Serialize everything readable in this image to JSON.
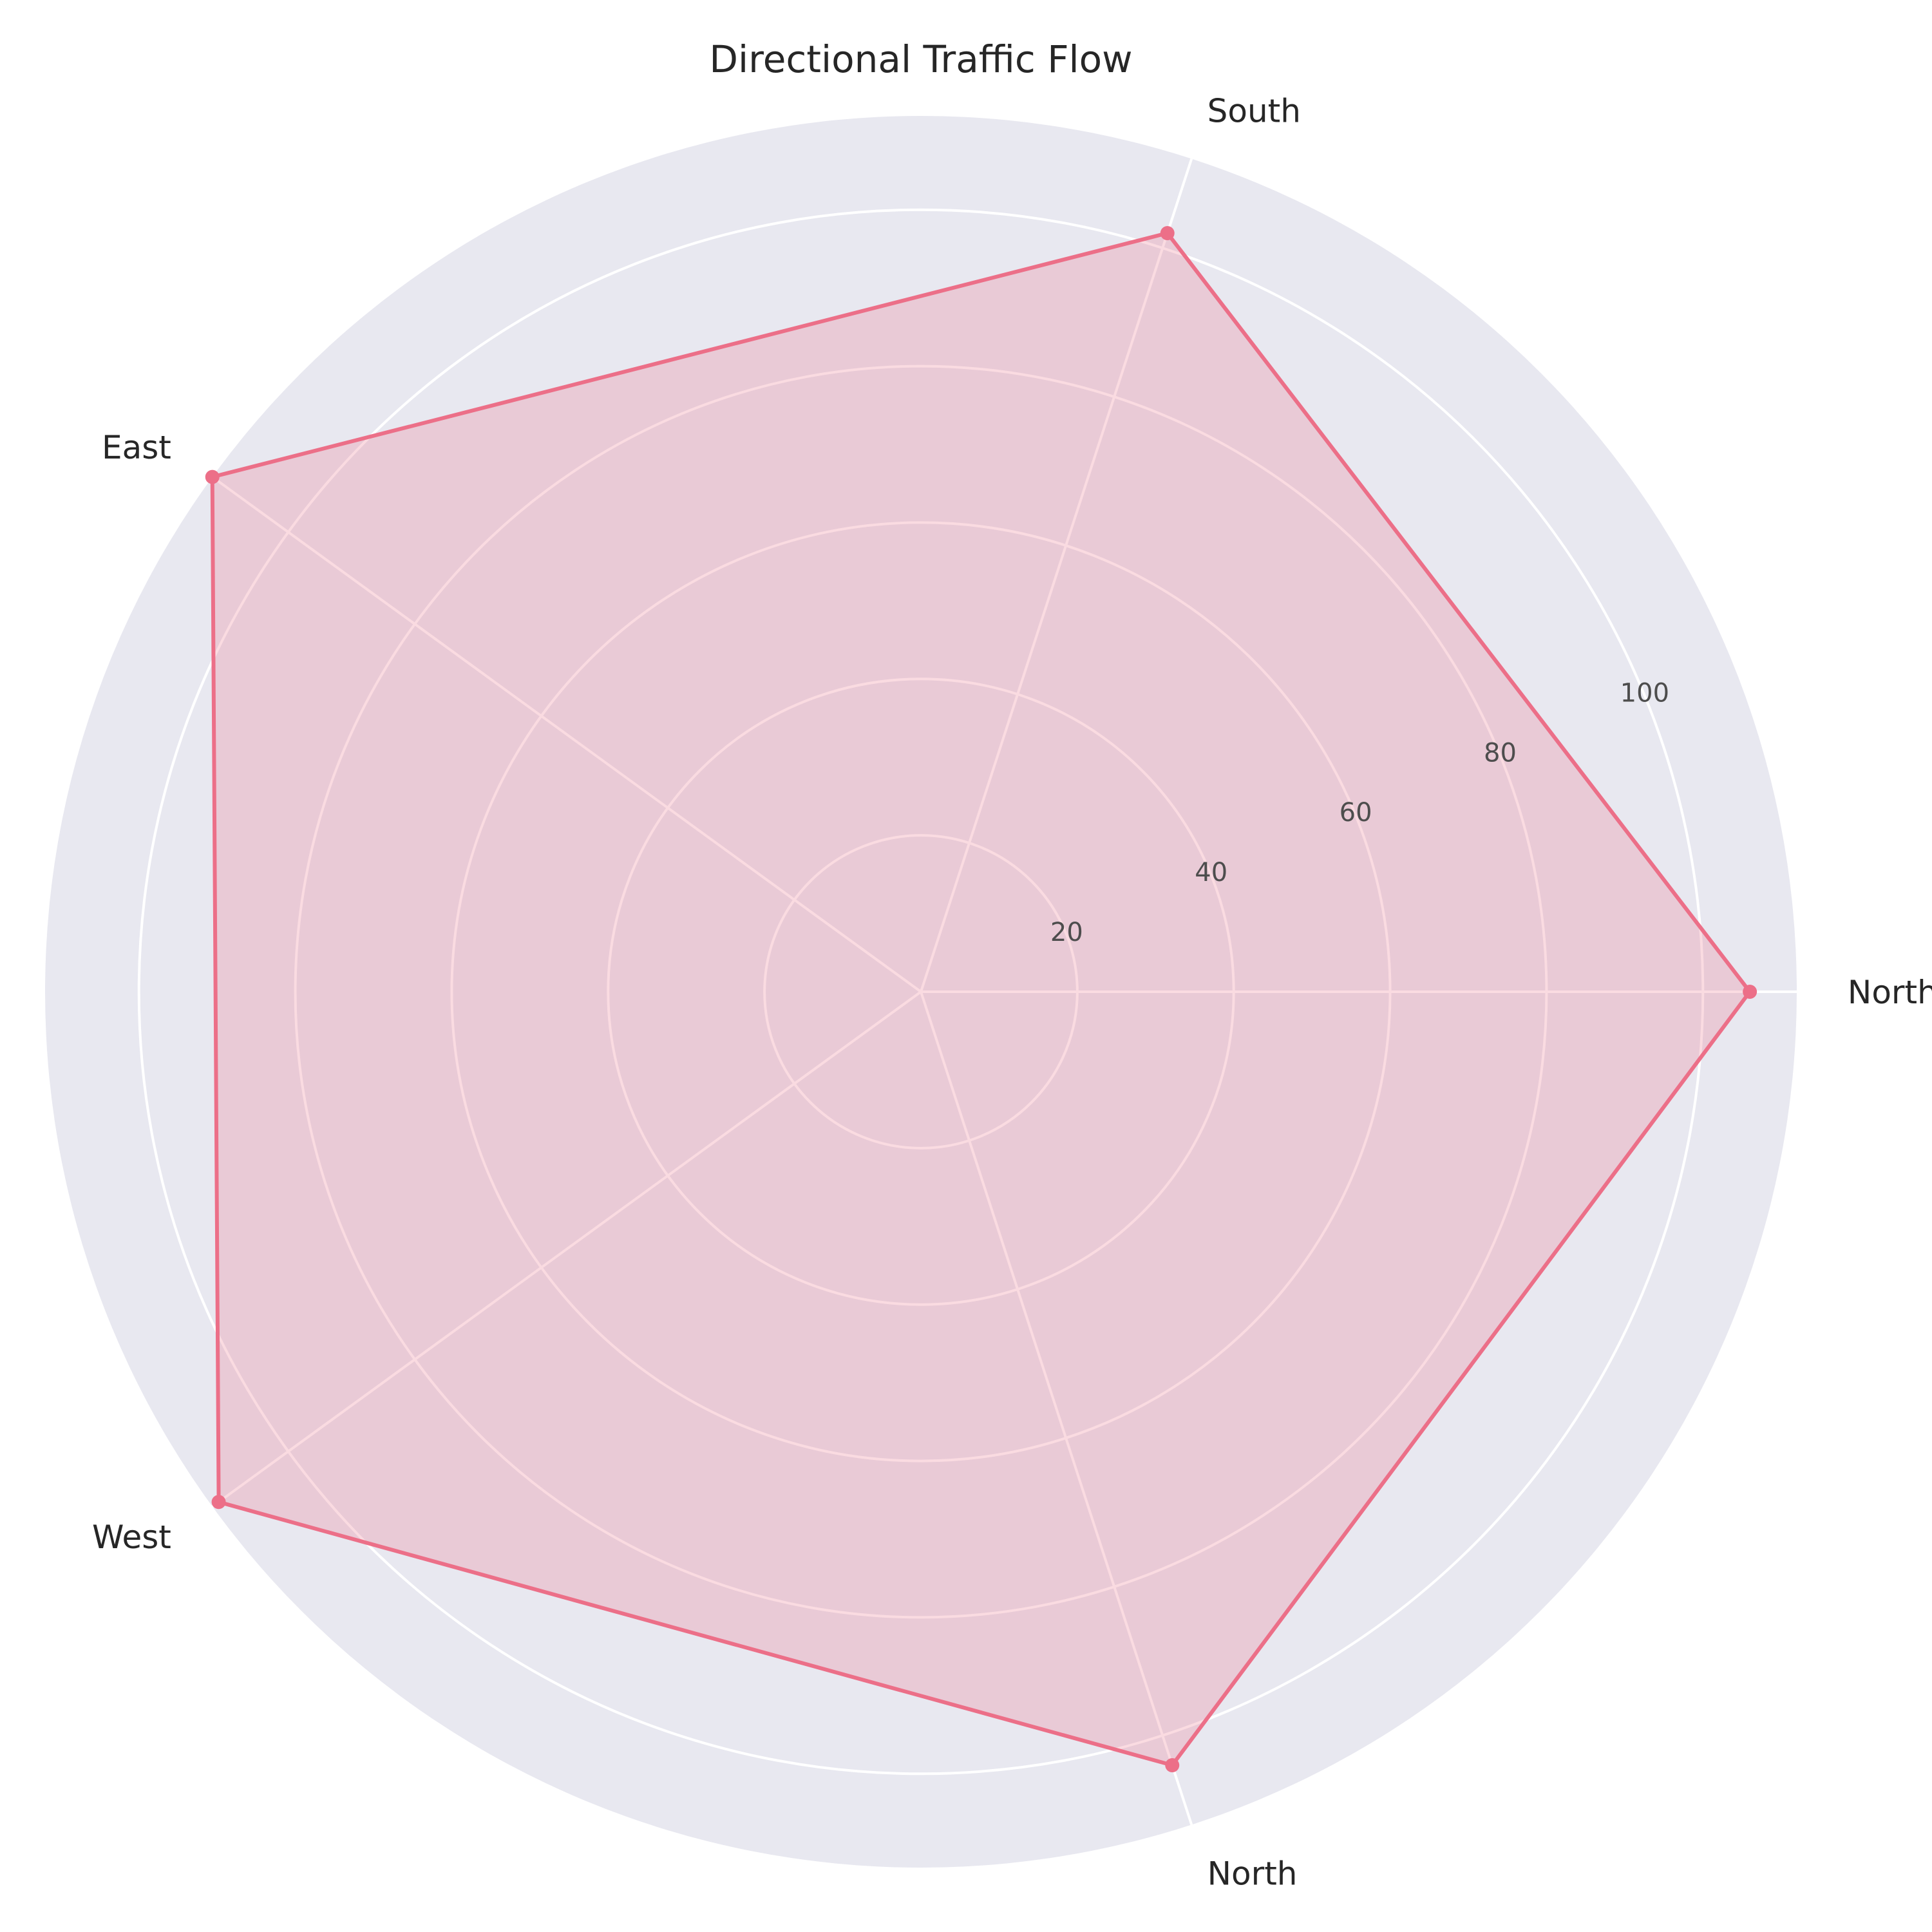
{
  "chart_data": {
    "type": "radar",
    "title": "Directional Traffic Flow",
    "categories": [
      "North",
      "South",
      "East",
      "West",
      "North"
    ],
    "series": [
      {
        "values": [
          106,
          102,
          112,
          111,
          104
        ],
        "line_color": "#ec6f88",
        "fill_color": "#ec6f88"
      }
    ],
    "r_ticks": [
      20,
      40,
      60,
      80,
      100
    ],
    "r_tick_labels": [
      "20",
      "40",
      "60",
      "80",
      "100"
    ],
    "rlim": [
      0,
      112
    ],
    "grid": true,
    "background_color": "#e8e8f0",
    "grid_color": "#ffffff"
  }
}
